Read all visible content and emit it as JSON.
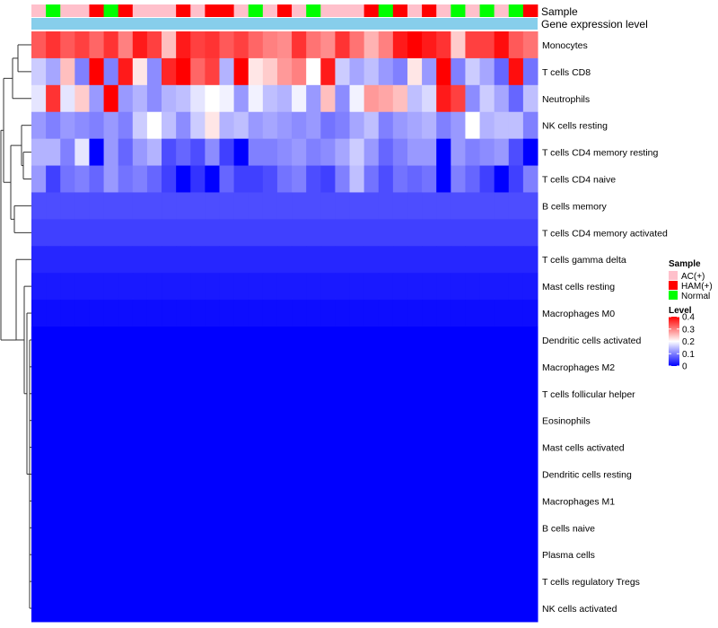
{
  "chart_data": {
    "type": "heatmap",
    "annotation_track_labels": {
      "sample": "Sample",
      "group": "Gene expression level"
    },
    "row_labels": [
      "Monocytes",
      "T cells CD8",
      "Neutrophils",
      "NK cells resting",
      "T cells CD4 memory resting",
      "T cells CD4 naive",
      "B cells memory",
      "T cells CD4 memory activated",
      "T cells gamma delta",
      "Mast cells resting",
      "Macrophages M0",
      "Dendritic cells activated",
      "Macrophages M2",
      "T cells follicular helper",
      "Eosinophils",
      "Mast cells activated",
      "Dendritic cells resting",
      "Macrophages M1",
      "B cells naive",
      "Plasma cells",
      "T cells regulatory  Tregs",
      "NK cells activated"
    ],
    "sample_groups": [
      "AC",
      "N",
      "AC",
      "AC",
      "H",
      "N",
      "H",
      "AC",
      "AC",
      "AC",
      "H",
      "AC",
      "H",
      "H",
      "AC",
      "N",
      "AC",
      "H",
      "AC",
      "N",
      "AC",
      "AC",
      "AC",
      "H",
      "N",
      "H",
      "AC",
      "H",
      "AC",
      "N",
      "AC",
      "N",
      "AC",
      "N",
      "H"
    ],
    "row_levels": [
      [
        0.33,
        0.36,
        0.33,
        0.35,
        0.32,
        0.36,
        0.3,
        0.38,
        0.35,
        0.25,
        0.38,
        0.35,
        0.36,
        0.33,
        0.35,
        0.32,
        0.3,
        0.29,
        0.36,
        0.31,
        0.29,
        0.36,
        0.31,
        0.26,
        0.3,
        0.38,
        0.4,
        0.38,
        0.36,
        0.24,
        0.35,
        0.35,
        0.39,
        0.33,
        0.31
      ],
      [
        0.16,
        0.13,
        0.25,
        0.1,
        0.4,
        0.1,
        0.38,
        0.22,
        0.11,
        0.37,
        0.4,
        0.32,
        0.35,
        0.14,
        0.4,
        0.22,
        0.24,
        0.28,
        0.3,
        0.2,
        0.38,
        0.16,
        0.13,
        0.15,
        0.12,
        0.1,
        0.22,
        0.12,
        0.4,
        0.1,
        0.16,
        0.13,
        0.08,
        0.39,
        0.09
      ],
      [
        0.18,
        0.36,
        0.18,
        0.24,
        0.12,
        0.4,
        0.12,
        0.14,
        0.11,
        0.14,
        0.15,
        0.18,
        0.2,
        0.19,
        0.12,
        0.19,
        0.15,
        0.14,
        0.19,
        0.12,
        0.25,
        0.11,
        0.19,
        0.28,
        0.27,
        0.25,
        0.15,
        0.17,
        0.38,
        0.35,
        0.11,
        0.16,
        0.13,
        0.08,
        0.15
      ],
      [
        0.12,
        0.1,
        0.12,
        0.11,
        0.1,
        0.12,
        0.1,
        0.16,
        0.2,
        0.15,
        0.11,
        0.16,
        0.22,
        0.14,
        0.15,
        0.12,
        0.13,
        0.12,
        0.11,
        0.12,
        0.09,
        0.1,
        0.13,
        0.15,
        0.1,
        0.12,
        0.13,
        0.14,
        0.1,
        0.12,
        0.2,
        0.14,
        0.15,
        0.15,
        0.1
      ],
      [
        0.14,
        0.14,
        0.1,
        0.18,
        0.0,
        0.12,
        0.08,
        0.12,
        0.14,
        0.06,
        0.08,
        0.06,
        0.11,
        0.05,
        0.0,
        0.1,
        0.1,
        0.11,
        0.12,
        0.1,
        0.11,
        0.13,
        0.16,
        0.12,
        0.08,
        0.1,
        0.12,
        0.12,
        0.0,
        0.12,
        0.1,
        0.11,
        0.12,
        0.06,
        0.0
      ],
      [
        0.12,
        0.05,
        0.09,
        0.1,
        0.08,
        0.12,
        0.09,
        0.1,
        0.08,
        0.05,
        0.0,
        0.04,
        0.0,
        0.08,
        0.05,
        0.05,
        0.06,
        0.09,
        0.1,
        0.06,
        0.05,
        0.1,
        0.15,
        0.09,
        0.06,
        0.09,
        0.08,
        0.09,
        0.0,
        0.1,
        0.08,
        0.05,
        0.0,
        0.05,
        0.1
      ]
    ],
    "baseline_levels": [
      0.06,
      0.05,
      0.03,
      0.02,
      0.01,
      0.0,
      0.0,
      0.0,
      0.0,
      0.0,
      0.0,
      0.0,
      0.0,
      0.0,
      0.0,
      0.0
    ],
    "legend": {
      "sample_title": "Sample",
      "sample_items": [
        {
          "label": "AC(+)",
          "color": "#ffc0cb"
        },
        {
          "label": "HAM(+)",
          "color": "#ff0000"
        },
        {
          "label": "Normal",
          "color": "#00ff00"
        }
      ],
      "level_title": "Level",
      "level_ticks": [
        "0.4",
        "0.3",
        "0.2",
        "0.1",
        "0"
      ],
      "level_range": [
        0,
        0.4
      ]
    },
    "colors": {
      "low": "#0000ff",
      "mid": "#ffffff",
      "high": "#ff0000",
      "group_bar": "#87ceeb",
      "dendrogram": "#333333"
    }
  }
}
